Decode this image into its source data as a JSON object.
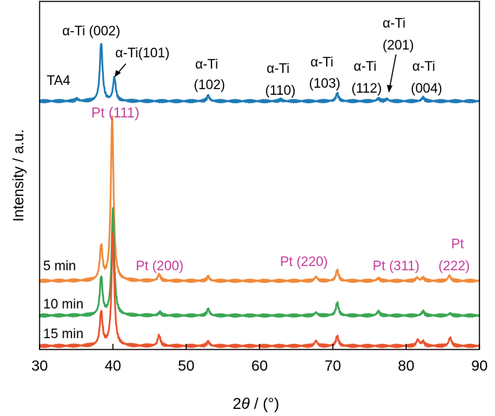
{
  "chart_data": {
    "type": "line",
    "title": "",
    "xlabel_parts": [
      "2",
      "θ",
      " / (°)"
    ],
    "ylabel": "Intensity / a.u.",
    "xlim": [
      30,
      90
    ],
    "xticks": [
      30,
      40,
      50,
      60,
      70,
      80,
      90
    ],
    "yticks_shown": false,
    "series": [
      {
        "name": "TA4",
        "color": "#1f7ab5",
        "baseline": 0.0,
        "peaks": [
          {
            "x": 35.1,
            "h": 0.02
          },
          {
            "x": 38.4,
            "h": 0.55
          },
          {
            "x": 40.2,
            "h": 0.22
          },
          {
            "x": 53.0,
            "h": 0.05
          },
          {
            "x": 62.9,
            "h": 0.015
          },
          {
            "x": 70.6,
            "h": 0.07
          },
          {
            "x": 76.2,
            "h": 0.025
          },
          {
            "x": 77.4,
            "h": 0.02
          },
          {
            "x": 82.3,
            "h": 0.035
          }
        ]
      },
      {
        "name": "5 min",
        "color": "#f08a3c",
        "baseline": 0.0,
        "peaks": [
          {
            "x": 38.4,
            "h": 0.32
          },
          {
            "x": 39.9,
            "h": 1.55
          },
          {
            "x": 46.3,
            "h": 0.06
          },
          {
            "x": 53.0,
            "h": 0.04
          },
          {
            "x": 67.7,
            "h": 0.04
          },
          {
            "x": 70.6,
            "h": 0.1
          },
          {
            "x": 76.2,
            "h": 0.025
          },
          {
            "x": 81.5,
            "h": 0.03
          },
          {
            "x": 82.3,
            "h": 0.03
          },
          {
            "x": 85.9,
            "h": 0.05
          }
        ]
      },
      {
        "name": "10 min",
        "color": "#3aa655",
        "baseline": 0.0,
        "peaks": [
          {
            "x": 38.4,
            "h": 0.36
          },
          {
            "x": 40.0,
            "h": 1.0
          },
          {
            "x": 46.4,
            "h": 0.03
          },
          {
            "x": 53.0,
            "h": 0.06
          },
          {
            "x": 67.7,
            "h": 0.03
          },
          {
            "x": 70.6,
            "h": 0.12
          },
          {
            "x": 76.2,
            "h": 0.04
          },
          {
            "x": 82.3,
            "h": 0.04
          },
          {
            "x": 86.0,
            "h": 0.02
          }
        ]
      },
      {
        "name": "15 min",
        "color": "#e8542d",
        "baseline": 0.0,
        "peaks": [
          {
            "x": 38.4,
            "h": 0.32
          },
          {
            "x": 40.0,
            "h": 1.05
          },
          {
            "x": 46.3,
            "h": 0.1
          },
          {
            "x": 53.0,
            "h": 0.04
          },
          {
            "x": 67.7,
            "h": 0.05
          },
          {
            "x": 70.6,
            "h": 0.09
          },
          {
            "x": 81.6,
            "h": 0.06
          },
          {
            "x": 82.3,
            "h": 0.04
          },
          {
            "x": 86.0,
            "h": 0.08
          }
        ]
      }
    ],
    "annotations": {
      "ti": [
        {
          "lines": [
            "α-Ti (002)"
          ],
          "x": 38.4
        },
        {
          "lines": [
            "α-Ti(101)"
          ],
          "x": 40.2
        },
        {
          "lines": [
            "α-Ti",
            "(102)"
          ],
          "x": 53.0
        },
        {
          "lines": [
            "α-Ti",
            "(110)"
          ],
          "x": 62.9
        },
        {
          "lines": [
            "α-Ti",
            "(103)"
          ],
          "x": 70.6
        },
        {
          "lines": [
            "α-Ti",
            "(112)"
          ],
          "x": 76.2
        },
        {
          "lines": [
            "α-Ti",
            "(201)"
          ],
          "x": 77.4
        },
        {
          "lines": [
            "α-Ti",
            "(004)"
          ],
          "x": 82.3
        }
      ],
      "pt": [
        {
          "lines": [
            "Pt (111)"
          ],
          "x": 39.9
        },
        {
          "lines": [
            "Pt (200)"
          ],
          "x": 46.3
        },
        {
          "lines": [
            "Pt (220)"
          ],
          "x": 67.7
        },
        {
          "lines": [
            "Pt (311)"
          ],
          "x": 81.5
        },
        {
          "lines": [
            "Pt",
            "(222)"
          ],
          "x": 85.9
        }
      ],
      "ti_color": "#000000",
      "pt_color": "#c43c9a"
    }
  }
}
